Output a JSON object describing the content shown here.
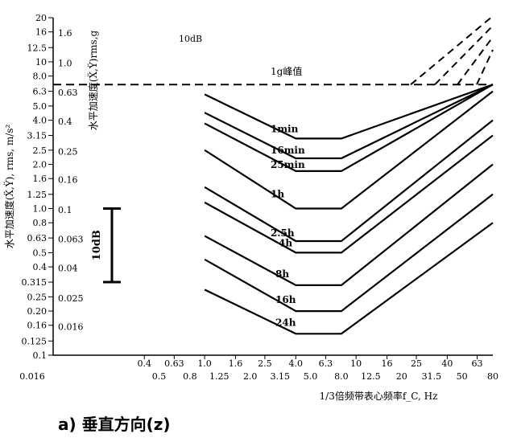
{
  "chart_data": {
    "type": "line",
    "scale": "log-log",
    "x_axis": {
      "label": "1/3倍频带表心频率f_C, Hz",
      "range": [
        0.1,
        80
      ],
      "ticks_row1": [
        "0.4",
        "0.63",
        "1.0",
        "1.6",
        "2.5",
        "4.0",
        "6.3",
        "10",
        "16",
        "25",
        "40",
        "63"
      ],
      "ticks_row2": [
        "0.016",
        "0.5",
        "0.8",
        "1.25",
        "2.0",
        "3.15",
        "5.0",
        "8.0",
        "12.5",
        "20",
        "31.5",
        "50",
        "80"
      ]
    },
    "y_axis_outer": {
      "label": "水平加速度(Ẍ,Ÿ), rms, m/s²",
      "range": [
        0.1,
        20
      ],
      "ticks": [
        "20",
        "16",
        "12.5",
        "10",
        "8.0",
        "6.3",
        "5.0",
        "4.0",
        "3.15",
        "2.5",
        "2.0",
        "1.6",
        "1.25",
        "1.0",
        "0.8",
        "0.63",
        "0.5",
        "0.4",
        "0.315",
        "0.25",
        "0.20",
        "0.16",
        "0.125",
        "0.1"
      ]
    },
    "y_axis_inner": {
      "label": "水平加速度(Ẍ,Ÿ)rms,g",
      "ticks": [
        "1.6",
        "1.0",
        "0.63",
        "0.4",
        "0.25",
        "0.16",
        "0.1",
        "0.063",
        "0.04",
        "0.025",
        "0.016"
      ]
    },
    "annotations": {
      "top_label": "10dB",
      "scale_bar_label": "10dB",
      "scale_bar_range": [
        0.315,
        1.0
      ],
      "peak_line_label": "1g峰值",
      "peak_line_y": 7.0
    },
    "series": [
      {
        "name": "1min",
        "flat_y": 3.0,
        "left_x": 1.0,
        "left_y": 6.0,
        "right_y": 20
      },
      {
        "name": "16min",
        "flat_y": 2.2,
        "left_x": 1.0,
        "left_y": 4.5,
        "right_y": 16
      },
      {
        "name": "25min",
        "flat_y": 1.8,
        "left_x": 1.0,
        "left_y": 3.8,
        "right_y": 12.5
      },
      {
        "name": "1h",
        "flat_y": 1.0,
        "left_x": 1.0,
        "left_y": 2.5,
        "right_y": 6.3
      },
      {
        "name": "2.5h",
        "flat_y": 0.6,
        "left_x": 1.0,
        "left_y": 1.4,
        "right_y": 4.0
      },
      {
        "name": "4h",
        "flat_y": 0.5,
        "left_x": 1.0,
        "left_y": 1.1,
        "right_y": 3.15
      },
      {
        "name": "8h",
        "flat_y": 0.3,
        "left_x": 1.0,
        "left_y": 0.65,
        "right_y": 2.0
      },
      {
        "name": "16h",
        "flat_y": 0.2,
        "left_x": 1.0,
        "left_y": 0.45,
        "right_y": 1.25
      },
      {
        "name": "24h",
        "flat_y": 0.14,
        "left_x": 1.0,
        "left_y": 0.28,
        "right_y": 0.8
      }
    ],
    "flat_range_x": [
      4.0,
      8.0
    ],
    "title": "a) 垂直方向(z)"
  }
}
